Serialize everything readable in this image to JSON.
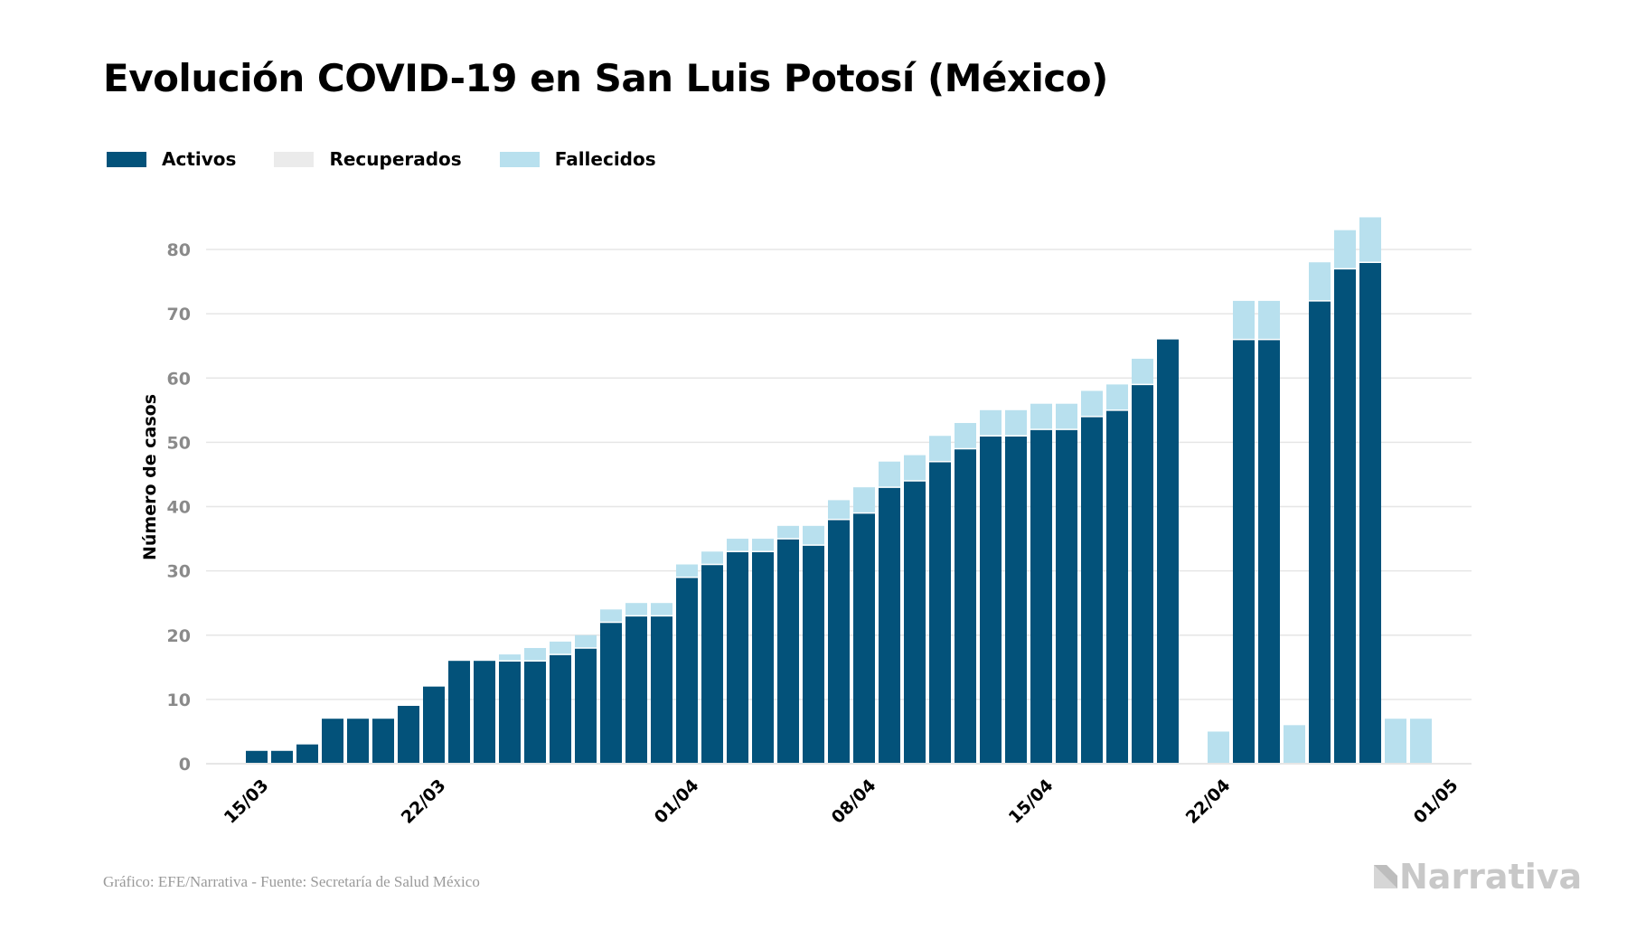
{
  "title": "Evolución COVID-19 en San Luis Potosí (México)",
  "legend": [
    {
      "label": "Activos",
      "color": "#03527a"
    },
    {
      "label": "Recuperados",
      "color": "#ebebeb"
    },
    {
      "label": "Fallecidos",
      "color": "#b8e0ee"
    }
  ],
  "source": "Gráfico: EFE/Narrativa - Fuente: Secretaría de Salud México",
  "logo_text": "Narrativa",
  "colors": {
    "activos": "#03527a",
    "recuperados": "#ebebeb",
    "fallecidos": "#b8e0ee",
    "grid": "#e6e6e6",
    "tick": "#8a8a8a",
    "logo": "#c8c8c8"
  },
  "chart_data": {
    "type": "bar",
    "stacked": true,
    "ylabel": "Número de casos",
    "ylim": [
      0,
      85
    ],
    "yticks": [
      0,
      10,
      20,
      30,
      40,
      50,
      60,
      70,
      80
    ],
    "grid": true,
    "legend_position": "top-left",
    "x_range": [
      "2020-03-13",
      "2020-05-02"
    ],
    "xticks": [
      {
        "date": "2020-03-15",
        "label": "15/03"
      },
      {
        "date": "2020-03-22",
        "label": "22/03"
      },
      {
        "date": "2020-04-01",
        "label": "01/04"
      },
      {
        "date": "2020-04-08",
        "label": "08/04"
      },
      {
        "date": "2020-04-15",
        "label": "15/04"
      },
      {
        "date": "2020-04-22",
        "label": "22/04"
      },
      {
        "date": "2020-05-01",
        "label": "01/05"
      }
    ],
    "dates": [
      "2020-03-15",
      "2020-03-16",
      "2020-03-17",
      "2020-03-18",
      "2020-03-19",
      "2020-03-20",
      "2020-03-21",
      "2020-03-22",
      "2020-03-23",
      "2020-03-24",
      "2020-03-25",
      "2020-03-26",
      "2020-03-27",
      "2020-03-28",
      "2020-03-29",
      "2020-03-30",
      "2020-03-31",
      "2020-04-01",
      "2020-04-02",
      "2020-04-03",
      "2020-04-04",
      "2020-04-05",
      "2020-04-06",
      "2020-04-07",
      "2020-04-08",
      "2020-04-09",
      "2020-04-10",
      "2020-04-11",
      "2020-04-12",
      "2020-04-13",
      "2020-04-14",
      "2020-04-15",
      "2020-04-16",
      "2020-04-17",
      "2020-04-18",
      "2020-04-19",
      "2020-04-20",
      "2020-04-21",
      "2020-04-22",
      "2020-04-23",
      "2020-04-24",
      "2020-04-25",
      "2020-04-26",
      "2020-04-27",
      "2020-04-28",
      "2020-04-29",
      "2020-04-30"
    ],
    "series": [
      {
        "name": "Activos",
        "values": [
          2,
          2,
          3,
          7,
          7,
          7,
          9,
          12,
          16,
          16,
          16,
          16,
          17,
          18,
          22,
          23,
          23,
          29,
          31,
          33,
          33,
          35,
          34,
          38,
          39,
          43,
          44,
          47,
          49,
          51,
          51,
          52,
          52,
          54,
          55,
          59,
          66,
          0,
          0,
          66,
          66,
          0,
          72,
          77,
          78,
          0,
          0
        ]
      },
      {
        "name": "Recuperados",
        "values": [
          0,
          0,
          0,
          0,
          0,
          0,
          0,
          0,
          0,
          0,
          0,
          0,
          0,
          0,
          0,
          0,
          0,
          0,
          0,
          0,
          0,
          0,
          0,
          0,
          0,
          0,
          0,
          0,
          0,
          0,
          0,
          0,
          0,
          0,
          0,
          0,
          0,
          0,
          0,
          0,
          0,
          0,
          0,
          0,
          0,
          0,
          0
        ]
      },
      {
        "name": "Fallecidos",
        "values": [
          0,
          0,
          0,
          0,
          0,
          0,
          0,
          0,
          0,
          0,
          1,
          2,
          2,
          2,
          2,
          2,
          2,
          2,
          2,
          2,
          2,
          2,
          3,
          3,
          4,
          4,
          4,
          4,
          4,
          4,
          4,
          4,
          4,
          4,
          4,
          4,
          0,
          0,
          5,
          6,
          6,
          6,
          6,
          6,
          7,
          7,
          7
        ]
      }
    ]
  }
}
